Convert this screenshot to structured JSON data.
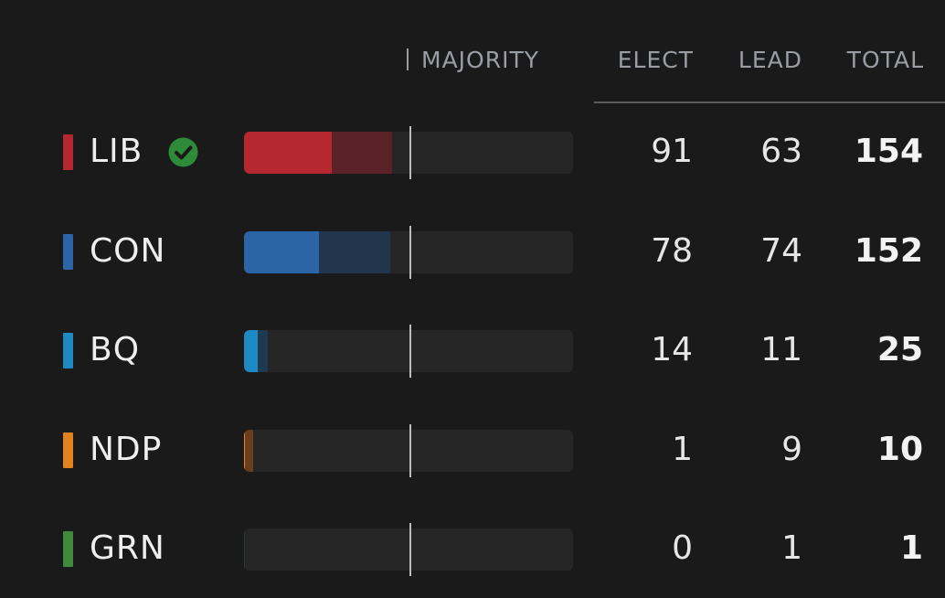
{
  "header": {
    "majority_label": "MAJORITY",
    "elect_label": "ELECT",
    "lead_label": "LEAD",
    "total_label": "TOTAL"
  },
  "bar_scale_max": 343,
  "majority_threshold": 172,
  "parties": [
    {
      "name": "LIB",
      "color": "#b5282f",
      "lead_color": "#5a2226",
      "elect": "91",
      "lead": "63",
      "total": "154",
      "majority_check": true,
      "check_icon": "check-circle-icon"
    },
    {
      "name": "CON",
      "color": "#2c65a6",
      "lead_color": "#22354d",
      "elect": "78",
      "lead": "74",
      "total": "152",
      "majority_check": false
    },
    {
      "name": "BQ",
      "color": "#1e8ac4",
      "lead_color": "#1d3a4e",
      "elect": "14",
      "lead": "11",
      "total": "25",
      "majority_check": false
    },
    {
      "name": "NDP",
      "color": "#e2821f",
      "lead_color": "#6b3e1c",
      "elect": "1",
      "lead": "9",
      "total": "10",
      "majority_check": false
    },
    {
      "name": "GRN",
      "color": "#3f8a3b",
      "lead_color": "#27402a",
      "elect": "0",
      "lead": "1",
      "total": "1",
      "majority_check": false
    }
  ]
}
